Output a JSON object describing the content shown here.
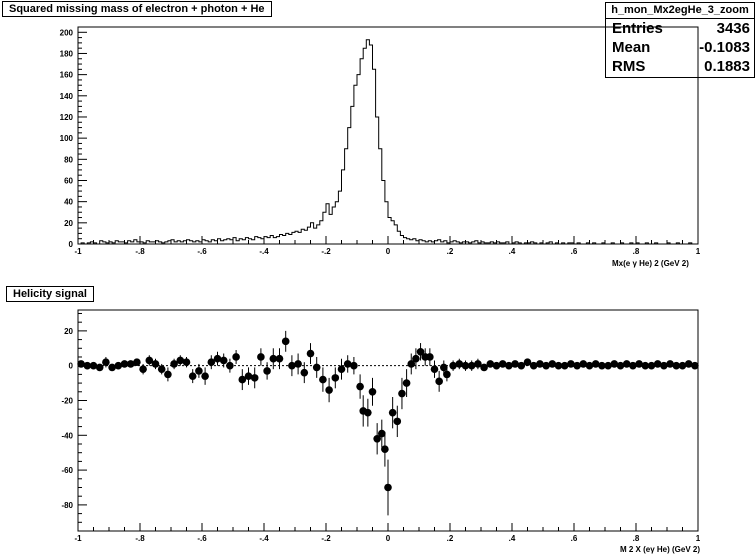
{
  "charts": {
    "top": {
      "title": "Squared missing mass of electron + photon + He",
      "xlabel": "Mx(e γ He)  2 (GeV  2)"
    },
    "bottom": {
      "title": "Helicity signal",
      "xlabel": "M  2 X (eγ He) (GeV  2)"
    }
  },
  "stats": {
    "name": "h_mon_Mx2egHe_3_zoom",
    "entries_label": "Entries",
    "entries": "3436",
    "mean_label": "Mean",
    "mean": "-0.1083",
    "rms_label": "RMS",
    "rms": "0.1883"
  },
  "chart_data": [
    {
      "type": "bar",
      "title": "Squared missing mass of electron + photon + He",
      "xlabel": "Mx(e γ He) 2 (GeV 2)",
      "ylabel": "",
      "xlim": [
        -1,
        1
      ],
      "ylim": [
        0,
        205
      ],
      "grid": false,
      "x_ticks": [
        -1,
        -0.8,
        -0.6,
        -0.4,
        -0.2,
        0,
        0.2,
        0.4,
        0.6,
        0.8,
        1
      ],
      "y_ticks": [
        0,
        20,
        40,
        60,
        80,
        100,
        120,
        140,
        160,
        180,
        200
      ],
      "bin_width": 0.01,
      "bin_centers_start": -0.995,
      "values": [
        0,
        1,
        0,
        1,
        2,
        1,
        0,
        3,
        2,
        1,
        2,
        1,
        3,
        2,
        2,
        1,
        3,
        2,
        4,
        2,
        2,
        1,
        3,
        2,
        2,
        3,
        2,
        1,
        2,
        3,
        4,
        2,
        3,
        2,
        3,
        4,
        3,
        2,
        3,
        2,
        4,
        3,
        2,
        4,
        3,
        5,
        3,
        4,
        5,
        4,
        6,
        3,
        5,
        4,
        6,
        5,
        4,
        7,
        6,
        5,
        7,
        6,
        8,
        6,
        7,
        9,
        8,
        10,
        9,
        11,
        12,
        11,
        14,
        13,
        16,
        20,
        15,
        18,
        22,
        30,
        38,
        28,
        35,
        40,
        50,
        70,
        90,
        110,
        130,
        150,
        160,
        175,
        185,
        193,
        188,
        165,
        120,
        90,
        60,
        40,
        25,
        22,
        18,
        12,
        8,
        6,
        5,
        4,
        5,
        3,
        4,
        3,
        2,
        3,
        2,
        3,
        4,
        2,
        3,
        1,
        2,
        3,
        2,
        1,
        2,
        2,
        1,
        2,
        3,
        1,
        2,
        1,
        1,
        2,
        1,
        2,
        1,
        1,
        2,
        0,
        1,
        2,
        1,
        0,
        1,
        1,
        2,
        1,
        0,
        1,
        0,
        1,
        2,
        0,
        1,
        0,
        1,
        0,
        1,
        1,
        0,
        1,
        0,
        0,
        1,
        0,
        1,
        0,
        0,
        1,
        0,
        0,
        1,
        0,
        0,
        1,
        0,
        0,
        1,
        0,
        1,
        0,
        0,
        1,
        0,
        0,
        1,
        0,
        0,
        0,
        1,
        0,
        0,
        1,
        0,
        0,
        0,
        1,
        0,
        0
      ]
    },
    {
      "type": "scatter",
      "title": "Helicity signal",
      "xlabel": "M 2 X (eγ He) (GeV 2)",
      "ylabel": "",
      "xlim": [
        -1,
        1
      ],
      "ylim": [
        -95,
        32
      ],
      "grid": false,
      "reference_line_y": 0,
      "x_ticks": [
        -1,
        -0.8,
        -0.6,
        -0.4,
        -0.2,
        0,
        0.2,
        0.4,
        0.6,
        0.8,
        1
      ],
      "y_ticks": [
        -80,
        -60,
        -40,
        -20,
        0,
        20
      ],
      "points": [
        [
          -0.99,
          1,
          2
        ],
        [
          -0.97,
          0,
          2
        ],
        [
          -0.95,
          0,
          2
        ],
        [
          -0.93,
          -1,
          2
        ],
        [
          -0.91,
          2,
          3
        ],
        [
          -0.89,
          -1,
          2
        ],
        [
          -0.87,
          0,
          2
        ],
        [
          -0.85,
          1,
          2
        ],
        [
          -0.83,
          1,
          2
        ],
        [
          -0.81,
          2,
          2
        ],
        [
          -0.79,
          -2,
          3
        ],
        [
          -0.77,
          3,
          3
        ],
        [
          -0.75,
          1,
          3
        ],
        [
          -0.73,
          -2,
          3
        ],
        [
          -0.71,
          -5,
          4
        ],
        [
          -0.69,
          1,
          3
        ],
        [
          -0.67,
          3,
          3
        ],
        [
          -0.65,
          2,
          3
        ],
        [
          -0.63,
          -6,
          4
        ],
        [
          -0.61,
          -3,
          4
        ],
        [
          -0.59,
          -6,
          5
        ],
        [
          -0.57,
          2,
          4
        ],
        [
          -0.55,
          4,
          4
        ],
        [
          -0.53,
          3,
          4
        ],
        [
          -0.51,
          0,
          4
        ],
        [
          -0.49,
          5,
          4
        ],
        [
          -0.47,
          -8,
          6
        ],
        [
          -0.45,
          -6,
          5
        ],
        [
          -0.43,
          -7,
          6
        ],
        [
          -0.41,
          5,
          5
        ],
        [
          -0.39,
          -3,
          5
        ],
        [
          -0.37,
          4,
          6
        ],
        [
          -0.35,
          4,
          6
        ],
        [
          -0.33,
          14,
          6
        ],
        [
          -0.31,
          0,
          6
        ],
        [
          -0.29,
          1,
          6
        ],
        [
          -0.27,
          -4,
          6
        ],
        [
          -0.25,
          7,
          6
        ],
        [
          -0.23,
          -1,
          6
        ],
        [
          -0.21,
          -8,
          7
        ],
        [
          -0.19,
          -14,
          7
        ],
        [
          -0.17,
          -7,
          6
        ],
        [
          -0.15,
          -2,
          6
        ],
        [
          -0.13,
          1,
          5
        ],
        [
          -0.11,
          0,
          5
        ],
        [
          -0.09,
          -12,
          7
        ],
        [
          -0.08,
          -26,
          9
        ],
        [
          -0.065,
          -27,
          8
        ],
        [
          -0.05,
          -15,
          8
        ],
        [
          -0.035,
          -42,
          9
        ],
        [
          -0.02,
          -39,
          8
        ],
        [
          -0.01,
          -48,
          10
        ],
        [
          0.0,
          -70,
          16
        ],
        [
          0.015,
          -27,
          9
        ],
        [
          0.03,
          -32,
          9
        ],
        [
          0.045,
          -16,
          9
        ],
        [
          0.06,
          -10,
          8
        ],
        [
          0.075,
          1,
          6
        ],
        [
          0.09,
          4,
          6
        ],
        [
          0.105,
          8,
          5
        ],
        [
          0.12,
          5,
          5
        ],
        [
          0.135,
          5,
          5
        ],
        [
          0.15,
          -2,
          5
        ],
        [
          0.165,
          -9,
          6
        ],
        [
          0.18,
          -1,
          4
        ],
        [
          0.19,
          -5,
          4
        ],
        [
          0.21,
          0,
          3
        ],
        [
          0.23,
          1,
          3
        ],
        [
          0.25,
          0,
          3
        ],
        [
          0.27,
          0,
          3
        ],
        [
          0.29,
          1,
          3
        ],
        [
          0.31,
          -1,
          2
        ],
        [
          0.33,
          1,
          2
        ],
        [
          0.35,
          0,
          2
        ],
        [
          0.37,
          1,
          2
        ],
        [
          0.39,
          0,
          2
        ],
        [
          0.41,
          1,
          2
        ],
        [
          0.43,
          0,
          2
        ],
        [
          0.45,
          2,
          2
        ],
        [
          0.47,
          0,
          2
        ],
        [
          0.49,
          1,
          2
        ],
        [
          0.51,
          0,
          2
        ],
        [
          0.53,
          1,
          2
        ],
        [
          0.55,
          0,
          2
        ],
        [
          0.57,
          0,
          2
        ],
        [
          0.59,
          1,
          2
        ],
        [
          0.61,
          0,
          2
        ],
        [
          0.63,
          1,
          2
        ],
        [
          0.65,
          0,
          2
        ],
        [
          0.67,
          1,
          2
        ],
        [
          0.69,
          0,
          2
        ],
        [
          0.71,
          0,
          2
        ],
        [
          0.73,
          1,
          2
        ],
        [
          0.75,
          0,
          2
        ],
        [
          0.77,
          1,
          2
        ],
        [
          0.79,
          0,
          2
        ],
        [
          0.81,
          1,
          2
        ],
        [
          0.83,
          0,
          2
        ],
        [
          0.85,
          0,
          2
        ],
        [
          0.87,
          1,
          2
        ],
        [
          0.89,
          0,
          2
        ],
        [
          0.91,
          1,
          2
        ],
        [
          0.93,
          0,
          2
        ],
        [
          0.95,
          0,
          2
        ],
        [
          0.97,
          1,
          2
        ],
        [
          0.99,
          0,
          2
        ]
      ]
    }
  ]
}
